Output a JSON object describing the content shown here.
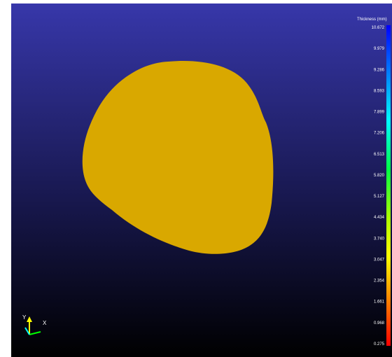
{
  "legend": {
    "title": "Thickness (mm)",
    "ticks": [
      "10.672",
      "9.979",
      "9.286",
      "8.593",
      "7.899",
      "7.206",
      "6.513",
      "5.820",
      "5.127",
      "4.434",
      "3.740",
      "3.047",
      "2.354",
      "1.661",
      "0.968",
      "0.275"
    ]
  },
  "triad": {
    "y_label": "Y",
    "x_label": "X"
  }
}
